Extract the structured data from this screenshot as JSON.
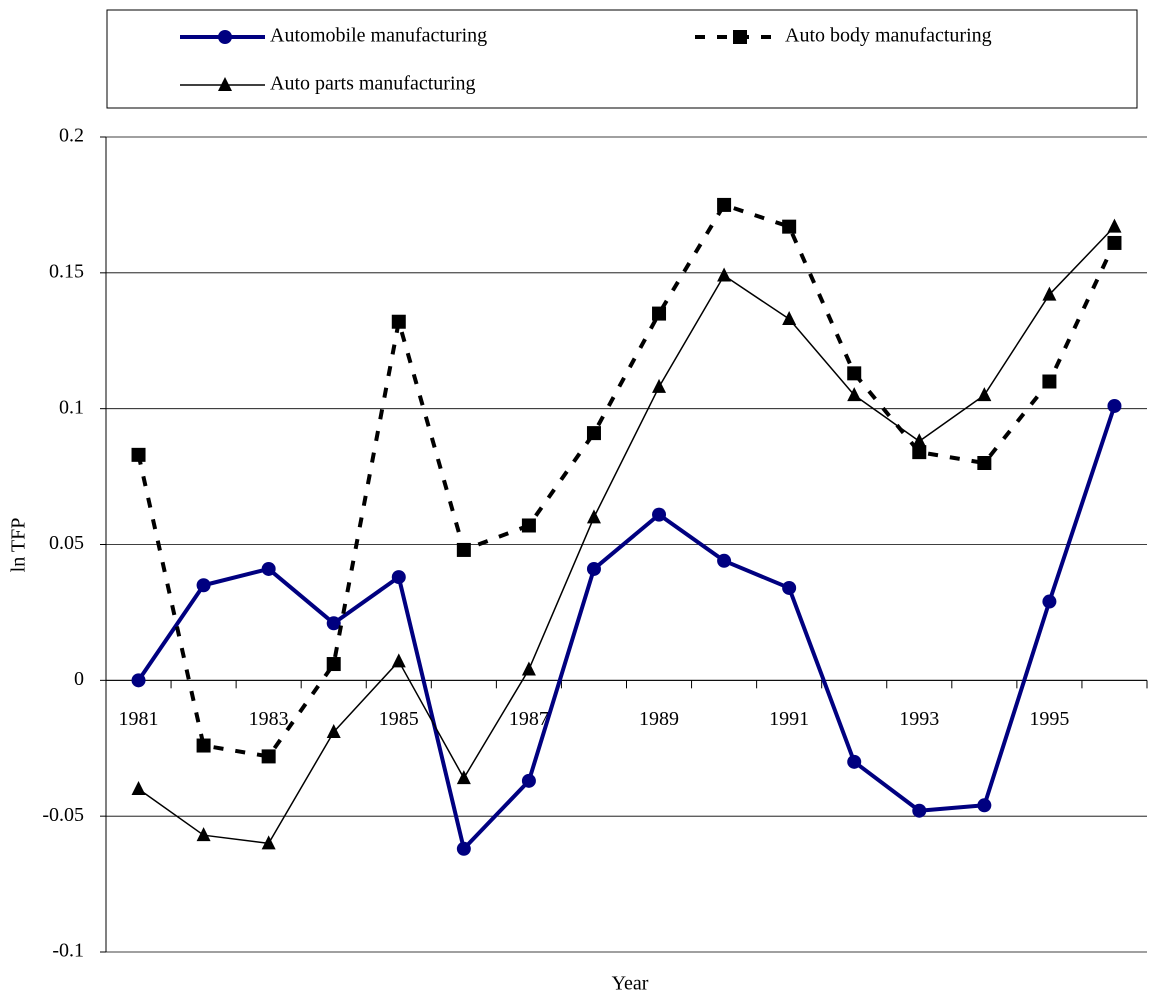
{
  "chart_data": {
    "type": "line",
    "x_label": "Year",
    "y_label": "ln TFP",
    "categories": [
      "1981",
      null,
      "1983",
      null,
      "1985",
      null,
      "1987",
      null,
      "1989",
      null,
      "1991",
      null,
      "1993",
      null,
      "1995",
      null
    ],
    "series": [
      {
        "name": "Automobile manufacturing",
        "color": "#000080",
        "marker": "circle",
        "line_style": "solid",
        "values": [
          0,
          0.035,
          0.041,
          0.021,
          0.038,
          -0.062,
          -0.037,
          0.041,
          0.061,
          0.044,
          0.034,
          -0.03,
          -0.048,
          -0.046,
          0.029,
          0.101
        ]
      },
      {
        "name": "Auto body manufacturing",
        "color": "#000000",
        "marker": "square",
        "line_style": "dashed",
        "values": [
          0.083,
          -0.024,
          -0.028,
          0.006,
          0.132,
          0.048,
          0.057,
          0.091,
          0.135,
          0.175,
          0.167,
          0.113,
          0.084,
          0.08,
          0.11,
          0.161
        ]
      },
      {
        "name": "Auto parts manufacturing",
        "color": "#000000",
        "marker": "triangle",
        "line_style": "thin",
        "values": [
          -0.04,
          -0.057,
          -0.06,
          -0.019,
          0.007,
          -0.036,
          0.004,
          0.06,
          0.108,
          0.149,
          0.133,
          0.105,
          0.088,
          0.105,
          0.142,
          0.167
        ]
      }
    ],
    "ylim": [
      -0.1,
      0.2
    ],
    "yticks": [
      -0.1,
      -0.05,
      0,
      0.05,
      0.1,
      0.15,
      0.2
    ],
    "grid": true
  }
}
